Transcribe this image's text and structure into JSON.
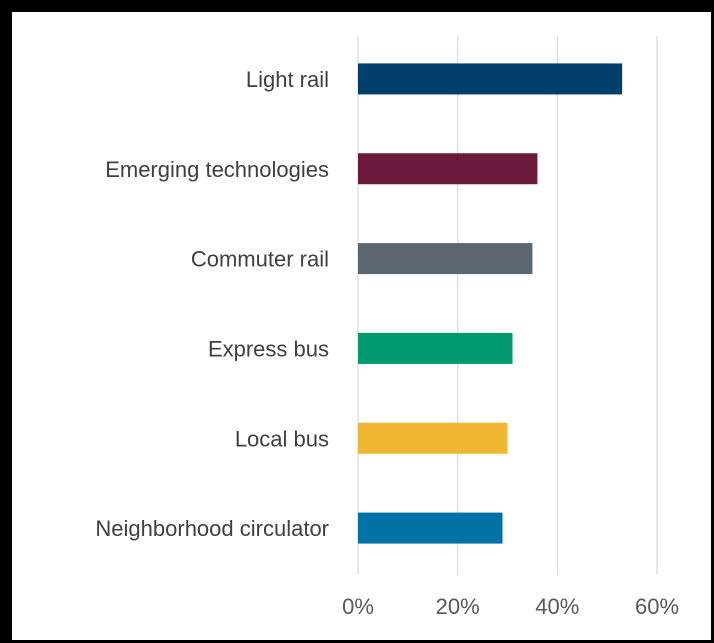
{
  "chart_data": {
    "type": "bar",
    "orientation": "horizontal",
    "categories": [
      "Light rail",
      "Emerging technologies",
      "Commuter rail",
      "Express bus",
      "Local bus",
      "Neighborhood circulator"
    ],
    "values": [
      53,
      36,
      35,
      31,
      30,
      29
    ],
    "colors": [
      "#003F6B",
      "#6B1A3E",
      "#5B6670",
      "#009A6E",
      "#F2B635",
      "#0073A6"
    ],
    "xlim": [
      0,
      60
    ],
    "xticks": [
      0,
      20,
      40,
      60
    ],
    "xtick_labels": [
      "0%",
      "20%",
      "40%",
      "60%"
    ],
    "grid": true,
    "legend": "none"
  }
}
